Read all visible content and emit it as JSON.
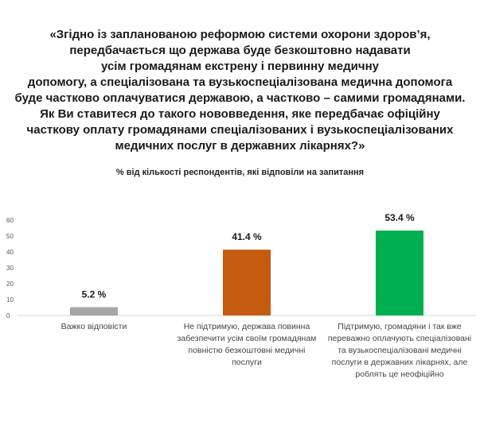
{
  "title_lines": [
    "«Згідно із запланованою реформою системи охорони здоров’я,",
    "передбачається що держава буде безкоштовно надавати",
    "усім громадянам екстрену і первинну медичну",
    "допомогу, а спеціалізована та вузькоспеціалізована медична допомога",
    "буде частково оплачуватися державою, а частково – самими громадянами.",
    "Як Ви ставитеся до такого нововведення, яке передбачає офіційну",
    "часткову оплату громадянами спеціалізованих і вузькоспеціалізованих",
    "медичних послуг в державних лікарнях?»"
  ],
  "subtitle": "% від кількості респондентів, які відповіли на запитання",
  "chart_data": {
    "type": "bar",
    "categories": [
      "Важко відповісти",
      "Не підтримую, держава повинна забезпечити усім своїм громадянам повністю безкоштовні медичні послуги",
      "Підтримую, громадяни і так вже переважно оплачують спеціалізовані та вузькоспеціалізовані медичні послуги в державних лікарнях, але роблять це неофіційно"
    ],
    "category_lines": [
      [
        "Важко відповісти"
      ],
      [
        "Не підтримую, держава повинна",
        "забезпечити усім своїм громадянам",
        "повністю безкоштовні медичні",
        "послуги"
      ],
      [
        "Підтримую, громадяни і так вже",
        "переважно оплачують спеціалізовані",
        "та вузькоспеціалізовані медичні",
        "послуги в державних лікарнях, але",
        "роблять це неофіційно"
      ]
    ],
    "values": [
      5.2,
      41.4,
      53.4
    ],
    "data_labels": [
      "5.2 %",
      "41.4 %",
      "53.4 %"
    ],
    "colors": [
      "#a6a6a6",
      "#c55a11",
      "#00b050"
    ],
    "yticks": [
      0,
      10,
      20,
      30,
      40,
      50,
      60
    ],
    "ylim": [
      0,
      60
    ],
    "grid": false,
    "legend": "none"
  }
}
